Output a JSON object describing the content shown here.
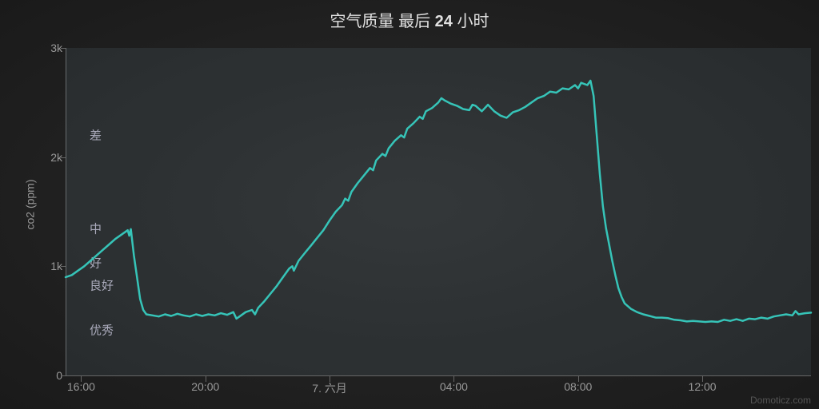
{
  "title_plain": "空气质量 最后 ",
  "title_bold": "24",
  "title_tail": " 小时",
  "ylabel": "co2 (ppm)",
  "credit": "Domoticz.com",
  "chart": {
    "type": "line",
    "ylim": [
      0,
      3000
    ],
    "yticks": [
      {
        "v": 0,
        "label": "0"
      },
      {
        "v": 1000,
        "label": "1k"
      },
      {
        "v": 2000,
        "label": "2k"
      },
      {
        "v": 3000,
        "label": "3k"
      }
    ],
    "y_tick_len": 6,
    "xaxis": {
      "min": 0,
      "max": 24,
      "ticks": [
        {
          "t": 0.5,
          "label": "16:00"
        },
        {
          "t": 4.5,
          "label": "20:00"
        },
        {
          "t": 8.5,
          "label": "7. 六月"
        },
        {
          "t": 12.5,
          "label": "04:00"
        },
        {
          "t": 16.5,
          "label": "08:00"
        },
        {
          "t": 20.5,
          "label": "12:00"
        }
      ],
      "tick_len": 8
    },
    "bands": [
      {
        "from": 1600,
        "to": 3000,
        "label": "差",
        "label_at": 2200
      },
      {
        "from": 1100,
        "to": 1600,
        "label": "中",
        "label_at": 1350
      },
      {
        "from": 900,
        "to": 1100,
        "label": "好",
        "label_at": 1030
      },
      {
        "from": 700,
        "to": 900,
        "label": "良好",
        "label_at": 830
      },
      {
        "from": 0,
        "to": 700,
        "label": "优秀",
        "label_at": 420
      }
    ],
    "series_color": "#36c4b8",
    "series_width": 2.5,
    "background": "#1e1e1e",
    "series": [
      [
        0.0,
        900
      ],
      [
        0.2,
        920
      ],
      [
        0.4,
        960
      ],
      [
        0.6,
        1000
      ],
      [
        0.8,
        1050
      ],
      [
        1.0,
        1100
      ],
      [
        1.2,
        1150
      ],
      [
        1.4,
        1200
      ],
      [
        1.6,
        1250
      ],
      [
        1.8,
        1290
      ],
      [
        2.0,
        1330
      ],
      [
        2.05,
        1280
      ],
      [
        2.1,
        1340
      ],
      [
        2.2,
        1100
      ],
      [
        2.3,
        900
      ],
      [
        2.4,
        700
      ],
      [
        2.5,
        600
      ],
      [
        2.6,
        560
      ],
      [
        2.8,
        550
      ],
      [
        3.0,
        540
      ],
      [
        3.2,
        560
      ],
      [
        3.4,
        545
      ],
      [
        3.6,
        565
      ],
      [
        3.8,
        550
      ],
      [
        4.0,
        540
      ],
      [
        4.2,
        560
      ],
      [
        4.4,
        545
      ],
      [
        4.6,
        560
      ],
      [
        4.8,
        550
      ],
      [
        5.0,
        570
      ],
      [
        5.2,
        555
      ],
      [
        5.4,
        580
      ],
      [
        5.5,
        520
      ],
      [
        5.6,
        540
      ],
      [
        5.8,
        580
      ],
      [
        6.0,
        600
      ],
      [
        6.1,
        560
      ],
      [
        6.2,
        620
      ],
      [
        6.4,
        680
      ],
      [
        6.6,
        750
      ],
      [
        6.8,
        820
      ],
      [
        7.0,
        900
      ],
      [
        7.2,
        980
      ],
      [
        7.3,
        1000
      ],
      [
        7.35,
        960
      ],
      [
        7.5,
        1050
      ],
      [
        7.7,
        1120
      ],
      [
        7.9,
        1190
      ],
      [
        8.1,
        1260
      ],
      [
        8.3,
        1330
      ],
      [
        8.5,
        1420
      ],
      [
        8.7,
        1500
      ],
      [
        8.9,
        1560
      ],
      [
        9.0,
        1620
      ],
      [
        9.1,
        1600
      ],
      [
        9.2,
        1680
      ],
      [
        9.4,
        1760
      ],
      [
        9.6,
        1830
      ],
      [
        9.8,
        1900
      ],
      [
        9.9,
        1880
      ],
      [
        10.0,
        1970
      ],
      [
        10.2,
        2030
      ],
      [
        10.3,
        2010
      ],
      [
        10.4,
        2080
      ],
      [
        10.6,
        2150
      ],
      [
        10.8,
        2200
      ],
      [
        10.9,
        2180
      ],
      [
        11.0,
        2260
      ],
      [
        11.2,
        2310
      ],
      [
        11.4,
        2370
      ],
      [
        11.5,
        2350
      ],
      [
        11.6,
        2420
      ],
      [
        11.8,
        2450
      ],
      [
        12.0,
        2500
      ],
      [
        12.1,
        2540
      ],
      [
        12.2,
        2520
      ],
      [
        12.4,
        2490
      ],
      [
        12.6,
        2470
      ],
      [
        12.8,
        2440
      ],
      [
        13.0,
        2430
      ],
      [
        13.1,
        2480
      ],
      [
        13.2,
        2470
      ],
      [
        13.4,
        2420
      ],
      [
        13.6,
        2480
      ],
      [
        13.8,
        2420
      ],
      [
        14.0,
        2380
      ],
      [
        14.2,
        2360
      ],
      [
        14.4,
        2410
      ],
      [
        14.6,
        2430
      ],
      [
        14.8,
        2460
      ],
      [
        15.0,
        2500
      ],
      [
        15.2,
        2540
      ],
      [
        15.4,
        2560
      ],
      [
        15.6,
        2600
      ],
      [
        15.8,
        2590
      ],
      [
        16.0,
        2630
      ],
      [
        16.2,
        2620
      ],
      [
        16.4,
        2660
      ],
      [
        16.5,
        2630
      ],
      [
        16.6,
        2680
      ],
      [
        16.8,
        2660
      ],
      [
        16.9,
        2700
      ],
      [
        17.0,
        2560
      ],
      [
        17.1,
        2200
      ],
      [
        17.2,
        1850
      ],
      [
        17.3,
        1550
      ],
      [
        17.4,
        1350
      ],
      [
        17.5,
        1200
      ],
      [
        17.6,
        1050
      ],
      [
        17.7,
        920
      ],
      [
        17.8,
        800
      ],
      [
        17.9,
        720
      ],
      [
        18.0,
        660
      ],
      [
        18.2,
        610
      ],
      [
        18.4,
        580
      ],
      [
        18.6,
        560
      ],
      [
        18.8,
        545
      ],
      [
        19.0,
        530
      ],
      [
        19.2,
        530
      ],
      [
        19.4,
        525
      ],
      [
        19.6,
        510
      ],
      [
        19.8,
        505
      ],
      [
        20.0,
        495
      ],
      [
        20.2,
        500
      ],
      [
        20.4,
        495
      ],
      [
        20.6,
        490
      ],
      [
        20.8,
        495
      ],
      [
        21.0,
        490
      ],
      [
        21.2,
        510
      ],
      [
        21.4,
        500
      ],
      [
        21.6,
        515
      ],
      [
        21.8,
        500
      ],
      [
        22.0,
        520
      ],
      [
        22.2,
        515
      ],
      [
        22.4,
        530
      ],
      [
        22.6,
        520
      ],
      [
        22.8,
        540
      ],
      [
        23.0,
        550
      ],
      [
        23.2,
        560
      ],
      [
        23.4,
        550
      ],
      [
        23.5,
        590
      ],
      [
        23.6,
        560
      ],
      [
        23.8,
        570
      ],
      [
        24.0,
        575
      ]
    ]
  }
}
